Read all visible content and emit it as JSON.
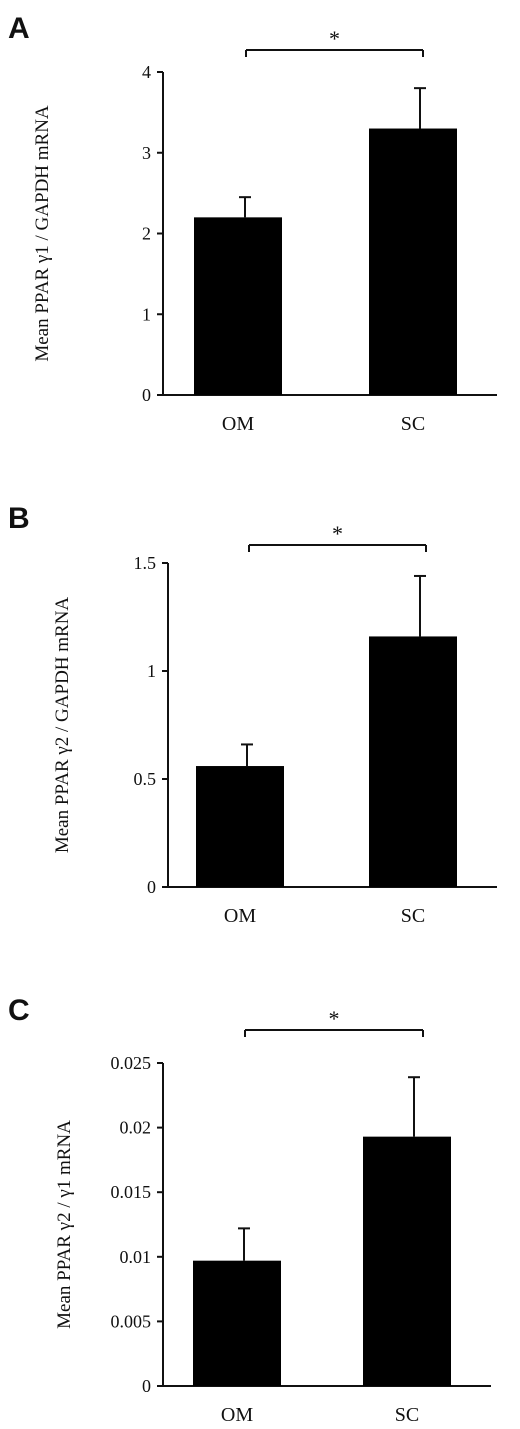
{
  "chart_data": [
    {
      "panel": "A",
      "type": "bar",
      "categories": [
        "OM",
        "SC"
      ],
      "values": [
        2.2,
        3.3
      ],
      "error_upper": [
        2.45,
        3.8
      ],
      "ylabel": "Mean PPAR γ1 / GAPDH mRNA",
      "ylim": [
        0,
        4
      ],
      "yticks": [
        0,
        1,
        2,
        3,
        4
      ],
      "ytick_labels": [
        "0",
        "1",
        "2",
        "3",
        "4"
      ],
      "significance": "*",
      "grid": false,
      "colors": {
        "bar": "#000000",
        "axis": "#111111"
      }
    },
    {
      "panel": "B",
      "type": "bar",
      "categories": [
        "OM",
        "SC"
      ],
      "values": [
        0.56,
        1.16
      ],
      "error_upper": [
        0.66,
        1.44
      ],
      "ylabel": "Mean PPAR γ2 / GAPDH mRNA",
      "ylim": [
        0,
        1.5
      ],
      "yticks": [
        0,
        0.5,
        1,
        1.5
      ],
      "ytick_labels": [
        "0",
        "0.5",
        "1",
        "1.5"
      ],
      "significance": "*",
      "grid": false,
      "colors": {
        "bar": "#000000",
        "axis": "#111111"
      }
    },
    {
      "panel": "C",
      "type": "bar",
      "categories": [
        "OM",
        "SC"
      ],
      "values": [
        0.0097,
        0.0193
      ],
      "error_upper": [
        0.0122,
        0.0239
      ],
      "ylabel": "Mean PPAR γ2 / γ1 mRNA",
      "ylim": [
        0,
        0.025
      ],
      "yticks": [
        0,
        0.005,
        0.01,
        0.015,
        0.02,
        0.025
      ],
      "ytick_labels": [
        "0",
        "0.005",
        "0.01",
        "0.015",
        "0.02",
        "0.025"
      ],
      "significance": "*",
      "grid": false,
      "colors": {
        "bar": "#000000",
        "axis": "#111111"
      }
    }
  ]
}
